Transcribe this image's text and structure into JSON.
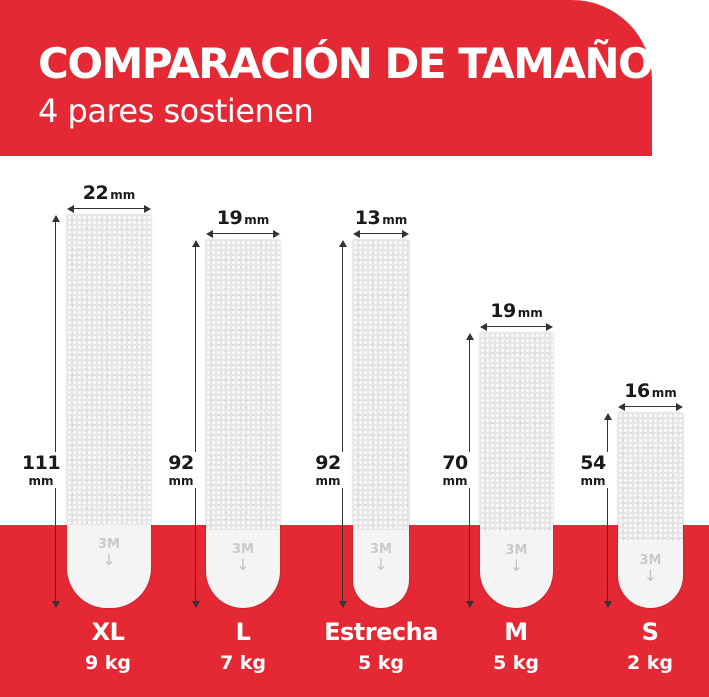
{
  "header": {
    "title": "COMPARACIÓN DE TAMAÑOS",
    "subtitle": "4 pares sostienen"
  },
  "colors": {
    "brand_red": "#e52934",
    "strip": "#f4f4f4"
  },
  "strip_logo": "3M",
  "strips": [
    {
      "size": "XL",
      "weight": "9 kg",
      "width_value": "22",
      "width_unit": "mm",
      "height_value": "111",
      "height_unit": "mm",
      "arrow_icon": "down-arrow-icon"
    },
    {
      "size": "L",
      "weight": "7 kg",
      "width_value": "19",
      "width_unit": "mm",
      "height_value": "92",
      "height_unit": "mm",
      "arrow_icon": "down-arrow-icon"
    },
    {
      "size": "Estrecha",
      "weight": "5 kg",
      "width_value": "13",
      "width_unit": "mm",
      "height_value": "92",
      "height_unit": "mm",
      "arrow_icon": "down-arrow-icon"
    },
    {
      "size": "M",
      "weight": "5 kg",
      "width_value": "19",
      "width_unit": "mm",
      "height_value": "70",
      "height_unit": "mm",
      "arrow_icon": "down-arrow-icon"
    },
    {
      "size": "S",
      "weight": "2 kg",
      "width_value": "16",
      "width_unit": "mm",
      "height_value": "54",
      "height_unit": "mm",
      "arrow_icon": "down-arrow-icon"
    }
  ]
}
